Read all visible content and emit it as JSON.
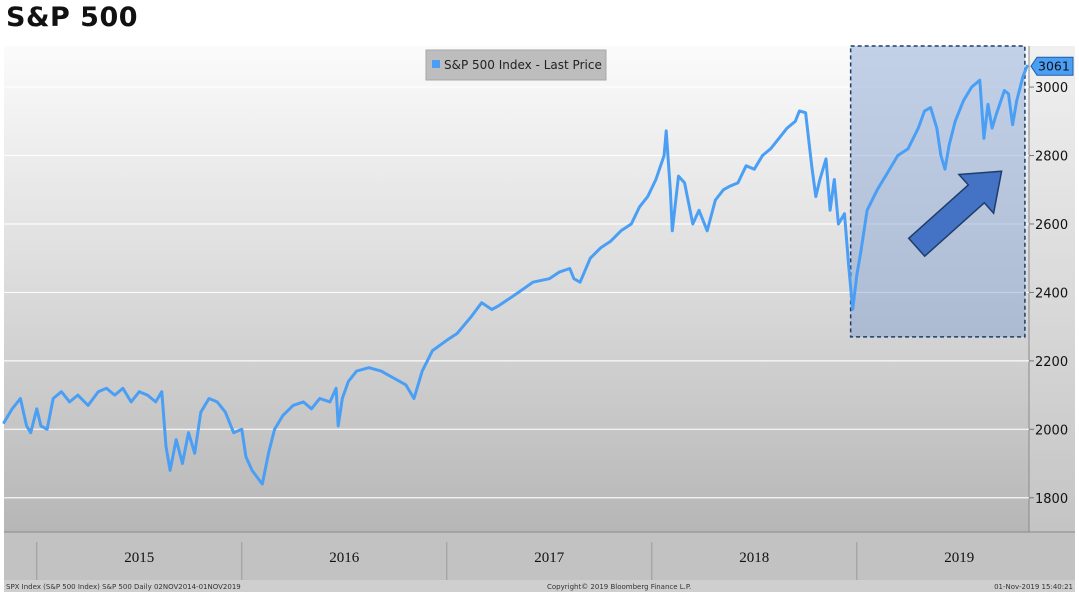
{
  "page": {
    "title": "S&P 500"
  },
  "colors": {
    "line": "#4a9ff5",
    "highlight_fill": "#7c9ed1",
    "highlight_border": "#1f3d6b",
    "arrow_fill": "#4472c4",
    "arrow_stroke": "#1f3d6b"
  },
  "footer": {
    "left": "SPX Index (S&P 500 Index) S&P 500  Daily 02NOV2014-01NOV2019",
    "center": "Copyright© 2019 Bloomberg Finance L.P.",
    "right": "01-Nov-2019 15:40:21"
  },
  "chart_data": {
    "type": "line",
    "title": "S&P 500",
    "legend": {
      "label": "S&P 500 Index - Last Price",
      "position": "top-center"
    },
    "last_value_label": "3061",
    "y_axis": {
      "side": "right",
      "ylim": [
        1700,
        3120
      ],
      "ticks": [
        1800,
        2000,
        2200,
        2400,
        2600,
        2800,
        3000
      ]
    },
    "x_axis": {
      "xlim": [
        2014.84,
        2019.84
      ],
      "labels": [
        "2015",
        "2016",
        "2017",
        "2018",
        "2019"
      ]
    },
    "grid": true,
    "highlight": {
      "x_range": [
        2018.97,
        2019.82
      ],
      "y_range": [
        2270,
        3120
      ],
      "style": "dashed box with upward arrow"
    },
    "series": [
      {
        "name": "S&P 500 Index - Last Price",
        "points": [
          [
            2014.84,
            2020
          ],
          [
            2014.88,
            2060
          ],
          [
            2014.92,
            2090
          ],
          [
            2014.95,
            2010
          ],
          [
            2014.97,
            1990
          ],
          [
            2015.0,
            2060
          ],
          [
            2015.02,
            2010
          ],
          [
            2015.05,
            2000
          ],
          [
            2015.08,
            2090
          ],
          [
            2015.12,
            2110
          ],
          [
            2015.16,
            2080
          ],
          [
            2015.2,
            2100
          ],
          [
            2015.25,
            2070
          ],
          [
            2015.3,
            2110
          ],
          [
            2015.34,
            2120
          ],
          [
            2015.38,
            2100
          ],
          [
            2015.42,
            2120
          ],
          [
            2015.46,
            2080
          ],
          [
            2015.5,
            2110
          ],
          [
            2015.54,
            2100
          ],
          [
            2015.58,
            2080
          ],
          [
            2015.61,
            2110
          ],
          [
            2015.63,
            1950
          ],
          [
            2015.65,
            1880
          ],
          [
            2015.68,
            1970
          ],
          [
            2015.71,
            1900
          ],
          [
            2015.74,
            1990
          ],
          [
            2015.77,
            1930
          ],
          [
            2015.8,
            2050
          ],
          [
            2015.84,
            2090
          ],
          [
            2015.88,
            2080
          ],
          [
            2015.92,
            2050
          ],
          [
            2015.96,
            1990
          ],
          [
            2016.0,
            2000
          ],
          [
            2016.02,
            1920
          ],
          [
            2016.05,
            1880
          ],
          [
            2016.1,
            1840
          ],
          [
            2016.13,
            1930
          ],
          [
            2016.16,
            2000
          ],
          [
            2016.2,
            2040
          ],
          [
            2016.25,
            2070
          ],
          [
            2016.3,
            2080
          ],
          [
            2016.34,
            2060
          ],
          [
            2016.38,
            2090
          ],
          [
            2016.43,
            2080
          ],
          [
            2016.46,
            2120
          ],
          [
            2016.47,
            2010
          ],
          [
            2016.49,
            2090
          ],
          [
            2016.52,
            2140
          ],
          [
            2016.56,
            2170
          ],
          [
            2016.62,
            2180
          ],
          [
            2016.68,
            2170
          ],
          [
            2016.74,
            2150
          ],
          [
            2016.8,
            2130
          ],
          [
            2016.84,
            2090
          ],
          [
            2016.88,
            2170
          ],
          [
            2016.93,
            2230
          ],
          [
            2017.0,
            2260
          ],
          [
            2017.05,
            2280
          ],
          [
            2017.12,
            2330
          ],
          [
            2017.17,
            2370
          ],
          [
            2017.22,
            2350
          ],
          [
            2017.25,
            2360
          ],
          [
            2017.3,
            2380
          ],
          [
            2017.35,
            2400
          ],
          [
            2017.42,
            2430
          ],
          [
            2017.5,
            2440
          ],
          [
            2017.55,
            2460
          ],
          [
            2017.6,
            2470
          ],
          [
            2017.62,
            2440
          ],
          [
            2017.65,
            2430
          ],
          [
            2017.7,
            2500
          ],
          [
            2017.75,
            2530
          ],
          [
            2017.8,
            2550
          ],
          [
            2017.85,
            2580
          ],
          [
            2017.9,
            2600
          ],
          [
            2017.94,
            2650
          ],
          [
            2017.98,
            2680
          ],
          [
            2018.02,
            2730
          ],
          [
            2018.06,
            2800
          ],
          [
            2018.07,
            2872
          ],
          [
            2018.09,
            2700
          ],
          [
            2018.1,
            2580
          ],
          [
            2018.13,
            2740
          ],
          [
            2018.16,
            2720
          ],
          [
            2018.2,
            2600
          ],
          [
            2018.23,
            2640
          ],
          [
            2018.27,
            2580
          ],
          [
            2018.31,
            2670
          ],
          [
            2018.35,
            2700
          ],
          [
            2018.38,
            2710
          ],
          [
            2018.42,
            2720
          ],
          [
            2018.46,
            2770
          ],
          [
            2018.5,
            2760
          ],
          [
            2018.54,
            2800
          ],
          [
            2018.58,
            2820
          ],
          [
            2018.62,
            2850
          ],
          [
            2018.66,
            2880
          ],
          [
            2018.7,
            2900
          ],
          [
            2018.72,
            2930
          ],
          [
            2018.75,
            2925
          ],
          [
            2018.78,
            2770
          ],
          [
            2018.8,
            2680
          ],
          [
            2018.82,
            2730
          ],
          [
            2018.85,
            2790
          ],
          [
            2018.87,
            2640
          ],
          [
            2018.89,
            2730
          ],
          [
            2018.91,
            2600
          ],
          [
            2018.94,
            2630
          ],
          [
            2018.96,
            2480
          ],
          [
            2018.98,
            2351
          ],
          [
            2019.0,
            2450
          ],
          [
            2019.02,
            2520
          ],
          [
            2019.05,
            2640
          ],
          [
            2019.1,
            2700
          ],
          [
            2019.15,
            2750
          ],
          [
            2019.2,
            2800
          ],
          [
            2019.25,
            2820
          ],
          [
            2019.3,
            2880
          ],
          [
            2019.33,
            2930
          ],
          [
            2019.36,
            2940
          ],
          [
            2019.39,
            2880
          ],
          [
            2019.41,
            2800
          ],
          [
            2019.43,
            2760
          ],
          [
            2019.45,
            2830
          ],
          [
            2019.48,
            2900
          ],
          [
            2019.52,
            2960
          ],
          [
            2019.56,
            3000
          ],
          [
            2019.6,
            3020
          ],
          [
            2019.62,
            2850
          ],
          [
            2019.64,
            2950
          ],
          [
            2019.66,
            2880
          ],
          [
            2019.68,
            2920
          ],
          [
            2019.72,
            2990
          ],
          [
            2019.74,
            2980
          ],
          [
            2019.76,
            2890
          ],
          [
            2019.78,
            2960
          ],
          [
            2019.81,
            3030
          ],
          [
            2019.83,
            3061
          ]
        ]
      }
    ]
  }
}
